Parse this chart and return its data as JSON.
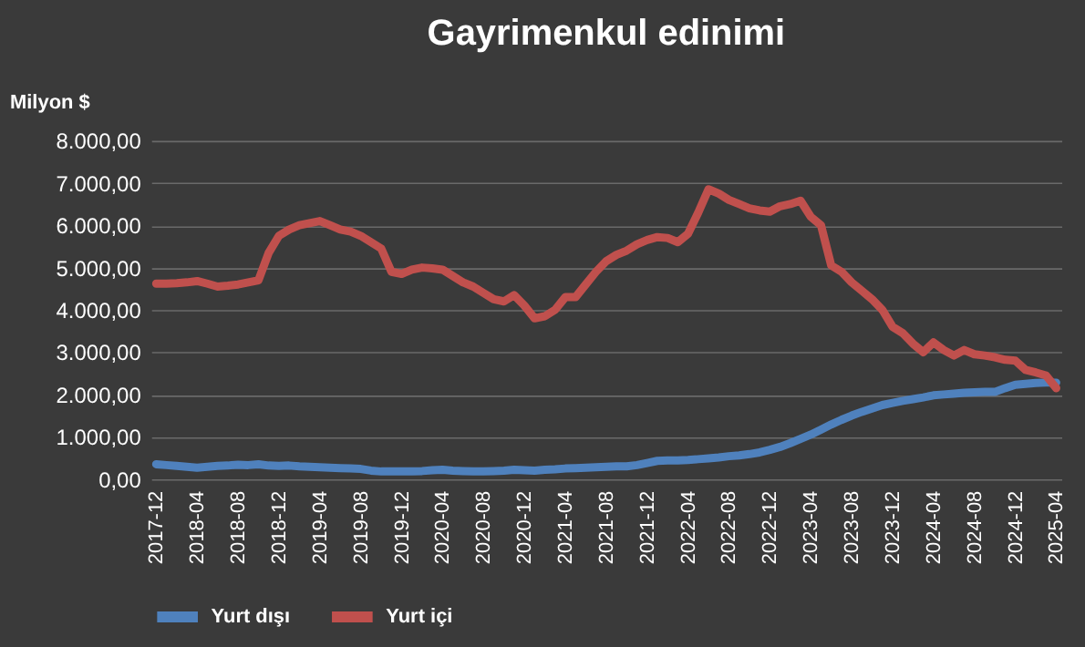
{
  "chart_data": {
    "type": "line",
    "title": "Gayrimenkul edinimi",
    "ylabel": "Milyon $",
    "categories": [
      "2017-12",
      null,
      null,
      null,
      "2018-04",
      null,
      null,
      null,
      "2018-08",
      null,
      null,
      null,
      "2018-12",
      null,
      null,
      null,
      "2019-04",
      null,
      null,
      null,
      "2019-08",
      null,
      null,
      null,
      "2019-12",
      null,
      null,
      null,
      "2020-04",
      null,
      null,
      null,
      "2020-08",
      null,
      null,
      null,
      "2020-12",
      null,
      null,
      null,
      "2021-04",
      null,
      null,
      null,
      "2021-08",
      null,
      null,
      null,
      "2021-12",
      null,
      null,
      null,
      "2022-04",
      null,
      null,
      null,
      "2022-08",
      null,
      null,
      null,
      "2022-12",
      null,
      null,
      null,
      "2023-04",
      null,
      null,
      null,
      "2023-08",
      null,
      null,
      null,
      "2023-12",
      null,
      null,
      null,
      "2024-04",
      null,
      null,
      null,
      "2024-08",
      null,
      null,
      null,
      "2024-12",
      null,
      null,
      null,
      "2025-04"
    ],
    "series": [
      {
        "name": "Yurt dışı",
        "color": "#4f81bd",
        "values": [
          350,
          330,
          310,
          290,
          270,
          290,
          310,
          320,
          340,
          330,
          350,
          320,
          310,
          320,
          300,
          290,
          280,
          270,
          260,
          250,
          240,
          200,
          180,
          180,
          180,
          180,
          190,
          210,
          220,
          200,
          190,
          180,
          180,
          190,
          200,
          220,
          210,
          200,
          220,
          230,
          250,
          260,
          270,
          280,
          290,
          300,
          300,
          330,
          380,
          430,
          440,
          440,
          450,
          470,
          490,
          510,
          540,
          560,
          590,
          630,
          690,
          760,
          850,
          950,
          1050,
          1170,
          1290,
          1400,
          1500,
          1590,
          1670,
          1750,
          1800,
          1850,
          1890,
          1930,
          1980,
          2000,
          2020,
          2040,
          2050,
          2060,
          2060,
          2150,
          2230,
          2250,
          2270,
          2280,
          2280
        ]
      },
      {
        "name": "Yurt içi",
        "color": "#c0504d",
        "values": [
          4620,
          4620,
          4630,
          4650,
          4680,
          4620,
          4550,
          4570,
          4600,
          4650,
          4700,
          5350,
          5750,
          5900,
          6000,
          6050,
          6100,
          6000,
          5900,
          5850,
          5750,
          5600,
          5450,
          4900,
          4850,
          4950,
          5000,
          4980,
          4950,
          4800,
          4650,
          4550,
          4400,
          4250,
          4200,
          4350,
          4100,
          3800,
          3850,
          4000,
          4300,
          4300,
          4600,
          4900,
          5150,
          5300,
          5400,
          5550,
          5650,
          5720,
          5700,
          5600,
          5800,
          6300,
          6850,
          6750,
          6600,
          6500,
          6400,
          6350,
          6320,
          6450,
          6500,
          6580,
          6200,
          6000,
          5050,
          4900,
          4650,
          4450,
          4250,
          4000,
          3600,
          3450,
          3200,
          3000,
          3230,
          3050,
          2920,
          3050,
          2950,
          2920,
          2880,
          2820,
          2800,
          2580,
          2520,
          2450,
          2150
        ]
      }
    ],
    "ylim": [
      0,
      8000
    ],
    "yticks": [
      {
        "value": 0,
        "label": "0,00"
      },
      {
        "value": 1000,
        "label": "1.000,00"
      },
      {
        "value": 2000,
        "label": "2.000,00"
      },
      {
        "value": 3000,
        "label": "3.000,00"
      },
      {
        "value": 4000,
        "label": "4.000,00"
      },
      {
        "value": 5000,
        "label": "5.000,00"
      },
      {
        "value": 6000,
        "label": "6.000,00"
      },
      {
        "value": 7000,
        "label": "7.000,00"
      },
      {
        "value": 8000,
        "label": "8.000,00"
      }
    ],
    "grid": "y",
    "legend": "bottom",
    "marker": "none",
    "line_style": "solid"
  }
}
